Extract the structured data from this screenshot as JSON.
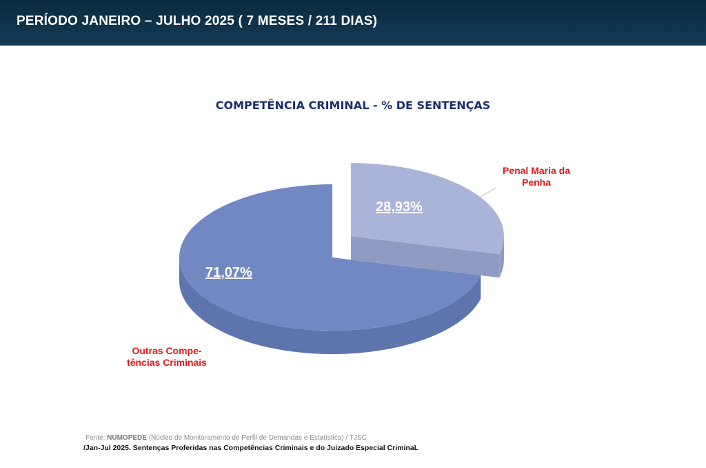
{
  "header": {
    "title": "PERÍODO JANEIRO – JULHO 2025 ( 7 MESES / 211 DIAS)"
  },
  "colors": {
    "header_bg": "#0f3049",
    "title": "#1b2f6e",
    "slice_main": "#7188c3",
    "slice_explode": "#a9b4d8",
    "category_label": "#e3171b",
    "value_label": "#ffffff"
  },
  "chart_data": {
    "type": "pie",
    "title": "COMPETÊNCIA CRIMINAL - % DE SENTENÇAS",
    "style": "3d-exploded",
    "slices": [
      {
        "label_lines": [
          "Outras Compe-",
          "tências Criminais"
        ],
        "value": 71.07,
        "display": "71,07%"
      },
      {
        "label_lines": [
          "Penal Maria da",
          "Penha"
        ],
        "value": 28.93,
        "display": "28,93%"
      }
    ]
  },
  "footer": {
    "source_prefix": "Fonte: ",
    "source_org": "NUMOPEDE",
    "source_rest": " (Núcleo de Monitoramento de Perfil de Demandas e Estatística) / TJSC",
    "note": "/Jan-Jul 2025. Sentenças Proferidas nas Competências Criminais e do Juizado Especial CriminaL"
  }
}
